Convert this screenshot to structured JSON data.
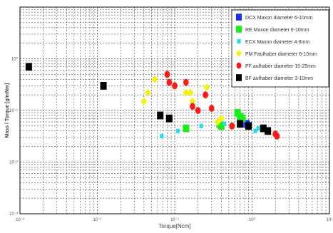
{
  "chart_data": {
    "type": "scatter",
    "xlabel": "Torque[Ncm]",
    "ylabel": "Mass / Torque [g/mNm]",
    "x_scale": "log",
    "y_scale": "log",
    "xlim": [
      0.001,
      10
    ],
    "ylim": [
      0.001,
      10
    ],
    "x_tick_labels": [
      "10⁻³",
      "10⁻²",
      "10⁻¹",
      "10⁰",
      "10¹"
    ],
    "y_tick_labels": [
      "10⁰",
      "10⁻¹",
      "10⁻²",
      "10⁻³"
    ],
    "grid": true,
    "legend_position": "top-right",
    "series": [
      {
        "name": "DCX Maxon diameter 6-10mm",
        "color": "#1a2cff",
        "marker": "square",
        "points": [
          [
            0.85,
            0.055
          ]
        ]
      },
      {
        "name": "RE Maxon diameter 6-10mm",
        "color": "#1aef1a",
        "marker": "square",
        "points": [
          [
            0.14,
            0.045
          ],
          [
            0.38,
            0.055
          ],
          [
            0.4,
            0.05
          ],
          [
            0.65,
            0.09
          ],
          [
            0.7,
            0.075
          ],
          [
            0.75,
            0.07
          ]
        ]
      },
      {
        "name": "ECX Maxon diameter 4-8mm",
        "color": "#22ddee",
        "marker": "square",
        "points": [
          [
            0.068,
            0.032
          ],
          [
            0.11,
            0.04
          ],
          [
            0.22,
            0.05
          ],
          [
            0.44,
            0.055
          ],
          [
            0.95,
            0.053
          ],
          [
            1.1,
            0.04
          ],
          [
            1.2,
            0.045
          ]
        ]
      },
      {
        "name": "PM Faulhaber diameter 6-10mm",
        "color": "#f2f20a",
        "marker": "diamond",
        "points": [
          [
            0.04,
            0.15
          ],
          [
            0.045,
            0.22
          ],
          [
            0.055,
            0.4
          ],
          [
            0.14,
            0.22
          ],
          [
            0.16,
            0.22
          ],
          [
            0.17,
            0.15
          ],
          [
            0.26,
            0.28
          ],
          [
            0.36,
            0.06
          ],
          [
            0.4,
            0.07
          ]
        ]
      },
      {
        "name": "PF aulhaber diameter 15-25mm",
        "color": "#ff1a1a",
        "marker": "circle",
        "points": [
          [
            0.08,
            0.5
          ],
          [
            0.085,
            0.35
          ],
          [
            0.1,
            0.3
          ],
          [
            0.14,
            0.35
          ],
          [
            0.17,
            0.12
          ],
          [
            0.2,
            0.1
          ],
          [
            0.25,
            0.2
          ],
          [
            0.3,
            0.11
          ],
          [
            0.55,
            0.05
          ],
          [
            2.0,
            0.035
          ],
          [
            2.1,
            0.032
          ]
        ]
      },
      {
        "name": "BF aulhaber diameter 3-10mm",
        "color": "#000000",
        "marker": "square",
        "points": [
          [
            0.0013,
            0.7
          ],
          [
            0.012,
            0.3
          ],
          [
            0.065,
            0.08
          ],
          [
            0.085,
            0.07
          ],
          [
            0.7,
            0.055
          ],
          [
            0.9,
            0.05
          ],
          [
            1.4,
            0.045
          ],
          [
            1.6,
            0.04
          ]
        ]
      }
    ]
  }
}
